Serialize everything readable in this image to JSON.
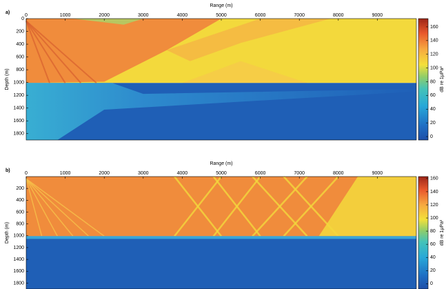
{
  "chart_data": [
    {
      "type": "heatmap",
      "panel_label": "a)",
      "xlabel": "Range (m)",
      "ylabel": "Depth (m)",
      "colorbar_label": "dB re 1μPa²",
      "xlim": [
        0,
        10000
      ],
      "xticks": [
        0,
        1000,
        2000,
        3000,
        4000,
        5000,
        6000,
        7000,
        8000,
        9000
      ],
      "ylim": [
        0,
        1900
      ],
      "y_inverted": true,
      "yticks": [
        0,
        200,
        400,
        600,
        800,
        1000,
        1200,
        1400,
        1600,
        1800
      ],
      "clim": [
        -5,
        172
      ],
      "cticks": [
        0,
        20,
        40,
        60,
        80,
        100,
        120,
        140,
        160
      ]
    },
    {
      "type": "heatmap",
      "panel_label": "b)",
      "xlabel": "Range (m)",
      "ylabel": "Depth (m)",
      "colorbar_label": "dB re 1μPa²",
      "xlim": [
        0,
        10000
      ],
      "xticks": [
        0,
        1000,
        2000,
        3000,
        4000,
        5000,
        6000,
        7000,
        8000,
        9000
      ],
      "ylim": [
        0,
        1900
      ],
      "y_inverted": true,
      "yticks": [
        200,
        400,
        600,
        800,
        1000,
        1200,
        1400,
        1600,
        1800
      ],
      "clim": [
        -8,
        163
      ],
      "cticks": [
        0,
        20,
        40,
        60,
        80,
        100,
        120,
        140,
        160
      ]
    }
  ]
}
